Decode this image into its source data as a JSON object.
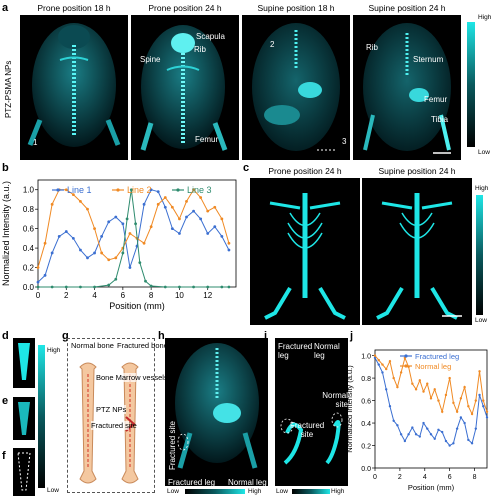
{
  "panel_letters": [
    "a",
    "b",
    "c",
    "d",
    "e",
    "f",
    "g",
    "h",
    "i",
    "j"
  ],
  "panel_a": {
    "row_label": "PTZ-PSMA NPs",
    "titles": [
      "Prone position 18 h",
      "Prone position 24 h",
      "Supine position 18 h",
      "Supine position 24 h"
    ],
    "annotations": {
      "img1": [
        "1"
      ],
      "img2": [
        "Scapula",
        "Rib",
        "Spine",
        "Femur"
      ],
      "img3": [
        "2",
        "3"
      ],
      "img4": [
        "Rib",
        "Sternum",
        "Femur",
        "Tibia"
      ]
    },
    "colorbar": {
      "high": "High",
      "low": "Low"
    }
  },
  "panel_c": {
    "titles": [
      "Prone position 24 h",
      "Supine position 24 h"
    ],
    "colorbar": {
      "high": "High",
      "low": "Low"
    }
  },
  "panel_d": {
    "colorbar": {
      "high": "High",
      "low": "Low"
    }
  },
  "panel_g": {
    "labels": [
      "Normal bone",
      "Fractured bone",
      "Bone Marrow vessels",
      "PTZ NPs",
      "Fractured site"
    ]
  },
  "panel_h": {
    "labels": [
      "Fractured site",
      "Fractured leg",
      "Normal leg"
    ],
    "colorbar": {
      "low": "Low",
      "high": "High"
    }
  },
  "panel_i": {
    "labels": [
      "Fractured leg",
      "Normal leg",
      "Normal site",
      "Fractured site"
    ],
    "colorbar": {
      "low": "Low",
      "high": "High"
    }
  },
  "colors": {
    "line1": "#3b6fd1",
    "line2": "#f08a24",
    "line3": "#2e8b6e",
    "cyan": "#1ee6e6"
  },
  "chart_data": [
    {
      "panel": "b",
      "type": "line",
      "xlabel": "Position (mm)",
      "ylabel": "Normalized Intensity (a.u.)",
      "xlim": [
        0,
        14
      ],
      "ylim": [
        0,
        1.1
      ],
      "xticks": [
        0,
        2,
        4,
        6,
        8,
        10,
        12
      ],
      "yticks": [
        0.0,
        0.2,
        0.4,
        0.6,
        0.8,
        1.0
      ],
      "legend": "top",
      "series": [
        {
          "name": "Line 1",
          "x": [
            0,
            0.5,
            1,
            1.5,
            2,
            2.5,
            3,
            3.5,
            4,
            4.5,
            5,
            5.5,
            6,
            6.5,
            7,
            7.5,
            8,
            8.5,
            9,
            9.5,
            10,
            10.5,
            11,
            11.5,
            12,
            12.5,
            13,
            13.5
          ],
          "y": [
            0.05,
            0.12,
            0.35,
            0.52,
            0.57,
            0.5,
            0.38,
            0.3,
            0.35,
            0.52,
            0.67,
            0.72,
            0.65,
            0.2,
            0.42,
            0.85,
            1.0,
            0.98,
            0.82,
            0.6,
            0.55,
            0.72,
            0.78,
            0.7,
            0.55,
            0.62,
            0.52,
            0.38
          ]
        },
        {
          "name": "Line 2",
          "x": [
            0,
            0.5,
            1,
            1.5,
            2,
            2.5,
            3,
            3.5,
            4,
            4.5,
            5,
            5.5,
            6,
            6.5,
            7,
            7.5,
            8,
            8.5,
            9,
            9.5,
            10,
            10.5,
            11,
            11.5,
            12,
            12.5,
            13,
            13.5
          ],
          "y": [
            0.2,
            0.45,
            0.85,
            1.0,
            1.0,
            0.95,
            0.88,
            0.8,
            0.6,
            0.35,
            0.28,
            0.3,
            0.4,
            0.55,
            0.5,
            0.45,
            0.62,
            0.85,
            0.92,
            0.82,
            0.7,
            0.88,
            1.0,
            0.92,
            0.78,
            0.82,
            0.7,
            0.45
          ]
        },
        {
          "name": "Line 3",
          "x": [
            0,
            1,
            2,
            3,
            4,
            5,
            5.5,
            6,
            6.3,
            6.6,
            6.9,
            7.2,
            7.6,
            8,
            9,
            10,
            11,
            12,
            13,
            13.5
          ],
          "y": [
            0.0,
            0.0,
            0.0,
            0.0,
            0.0,
            0.02,
            0.08,
            0.35,
            0.7,
            1.0,
            0.65,
            0.25,
            0.06,
            0.01,
            0.0,
            0.0,
            0.0,
            0.0,
            0.0,
            0.0
          ]
        }
      ]
    },
    {
      "panel": "j",
      "type": "line",
      "xlabel": "Position (mm)",
      "ylabel": "Normalized Intensity (a.u.)",
      "xlim": [
        0,
        9
      ],
      "ylim": [
        0,
        1.05
      ],
      "xticks": [
        0,
        2,
        4,
        6,
        8
      ],
      "yticks": [
        0.0,
        0.2,
        0.4,
        0.6,
        0.8,
        1.0
      ],
      "legend": "top-right",
      "series": [
        {
          "name": "Fractured leg",
          "x": [
            0,
            0.3,
            0.6,
            0.9,
            1.2,
            1.5,
            1.8,
            2.1,
            2.4,
            2.7,
            3.0,
            3.3,
            3.6,
            3.9,
            4.2,
            4.5,
            4.8,
            5.1,
            5.4,
            5.7,
            6.0,
            6.3,
            6.6,
            6.9,
            7.2,
            7.5,
            7.8,
            8.1,
            8.4,
            8.7,
            9.0
          ],
          "y": [
            0.98,
            0.92,
            0.85,
            0.7,
            0.55,
            0.42,
            0.38,
            0.3,
            0.24,
            0.3,
            0.36,
            0.3,
            0.28,
            0.4,
            0.35,
            0.3,
            0.26,
            0.34,
            0.32,
            0.24,
            0.2,
            0.22,
            0.35,
            0.45,
            0.4,
            0.25,
            0.22,
            0.35,
            0.65,
            0.55,
            0.45
          ]
        },
        {
          "name": "Normal leg",
          "x": [
            0,
            0.3,
            0.6,
            0.9,
            1.2,
            1.5,
            1.8,
            2.1,
            2.4,
            2.7,
            3.0,
            3.3,
            3.6,
            3.9,
            4.2,
            4.5,
            4.8,
            5.1,
            5.4,
            5.7,
            6.0,
            6.3,
            6.6,
            6.9,
            7.2,
            7.5,
            7.8,
            8.1,
            8.4,
            8.7,
            9.0
          ],
          "y": [
            1.0,
            0.96,
            0.92,
            0.88,
            0.95,
            0.8,
            0.72,
            0.85,
            0.98,
            0.9,
            0.75,
            0.7,
            0.78,
            0.68,
            0.75,
            0.62,
            0.7,
            0.6,
            0.5,
            0.65,
            0.8,
            0.58,
            0.5,
            0.62,
            0.72,
            0.55,
            0.48,
            0.6,
            0.86,
            0.6,
            0.5
          ]
        }
      ]
    }
  ]
}
